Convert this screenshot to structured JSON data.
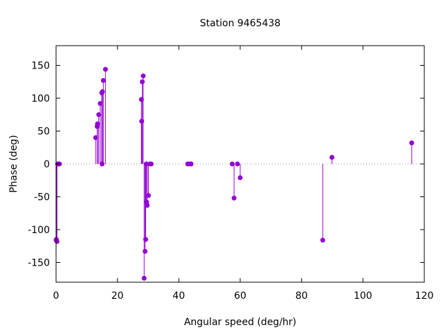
{
  "chart_data": {
    "type": "scatter",
    "style": "impulses",
    "title": "Station 9465438",
    "xlabel": "Angular speed (deg/hr)",
    "ylabel": "Phase (deg)",
    "xlim": [
      0,
      120
    ],
    "ylim": [
      -180,
      180
    ],
    "xticks": [
      0,
      20,
      40,
      60,
      80,
      100,
      120
    ],
    "yticks": [
      -150,
      -100,
      -50,
      0,
      50,
      100,
      150
    ],
    "zero_line": true,
    "grid": false,
    "color": "#9400d3",
    "points": [
      {
        "x": 0.0,
        "y": -116
      },
      {
        "x": 0.1,
        "y": -115
      },
      {
        "x": 0.3,
        "y": -118
      },
      {
        "x": 0.5,
        "y": 0
      },
      {
        "x": 0.9,
        "y": 0
      },
      {
        "x": 1.1,
        "y": 0
      },
      {
        "x": 12.9,
        "y": 40
      },
      {
        "x": 13.4,
        "y": 57
      },
      {
        "x": 13.5,
        "y": 61
      },
      {
        "x": 13.9,
        "y": 75
      },
      {
        "x": 14.4,
        "y": 92
      },
      {
        "x": 14.9,
        "y": 108
      },
      {
        "x": 15.0,
        "y": 0
      },
      {
        "x": 15.1,
        "y": 110
      },
      {
        "x": 15.4,
        "y": 127
      },
      {
        "x": 16.1,
        "y": 144
      },
      {
        "x": 27.8,
        "y": 98
      },
      {
        "x": 27.9,
        "y": 65
      },
      {
        "x": 28.1,
        "y": 125
      },
      {
        "x": 28.4,
        "y": 134
      },
      {
        "x": 28.7,
        "y": -174
      },
      {
        "x": 29.0,
        "y": -133
      },
      {
        "x": 29.2,
        "y": -115
      },
      {
        "x": 29.4,
        "y": 0
      },
      {
        "x": 29.5,
        "y": -58
      },
      {
        "x": 29.7,
        "y": -63
      },
      {
        "x": 30.1,
        "y": -48
      },
      {
        "x": 30.6,
        "y": 0
      },
      {
        "x": 31.0,
        "y": 0
      },
      {
        "x": 42.9,
        "y": 0
      },
      {
        "x": 43.5,
        "y": 0
      },
      {
        "x": 44.0,
        "y": 0
      },
      {
        "x": 57.4,
        "y": 0
      },
      {
        "x": 58.0,
        "y": -52
      },
      {
        "x": 59.1,
        "y": 0
      },
      {
        "x": 60.0,
        "y": -21
      },
      {
        "x": 86.9,
        "y": -116
      },
      {
        "x": 89.9,
        "y": 10
      },
      {
        "x": 115.9,
        "y": 32
      }
    ]
  }
}
